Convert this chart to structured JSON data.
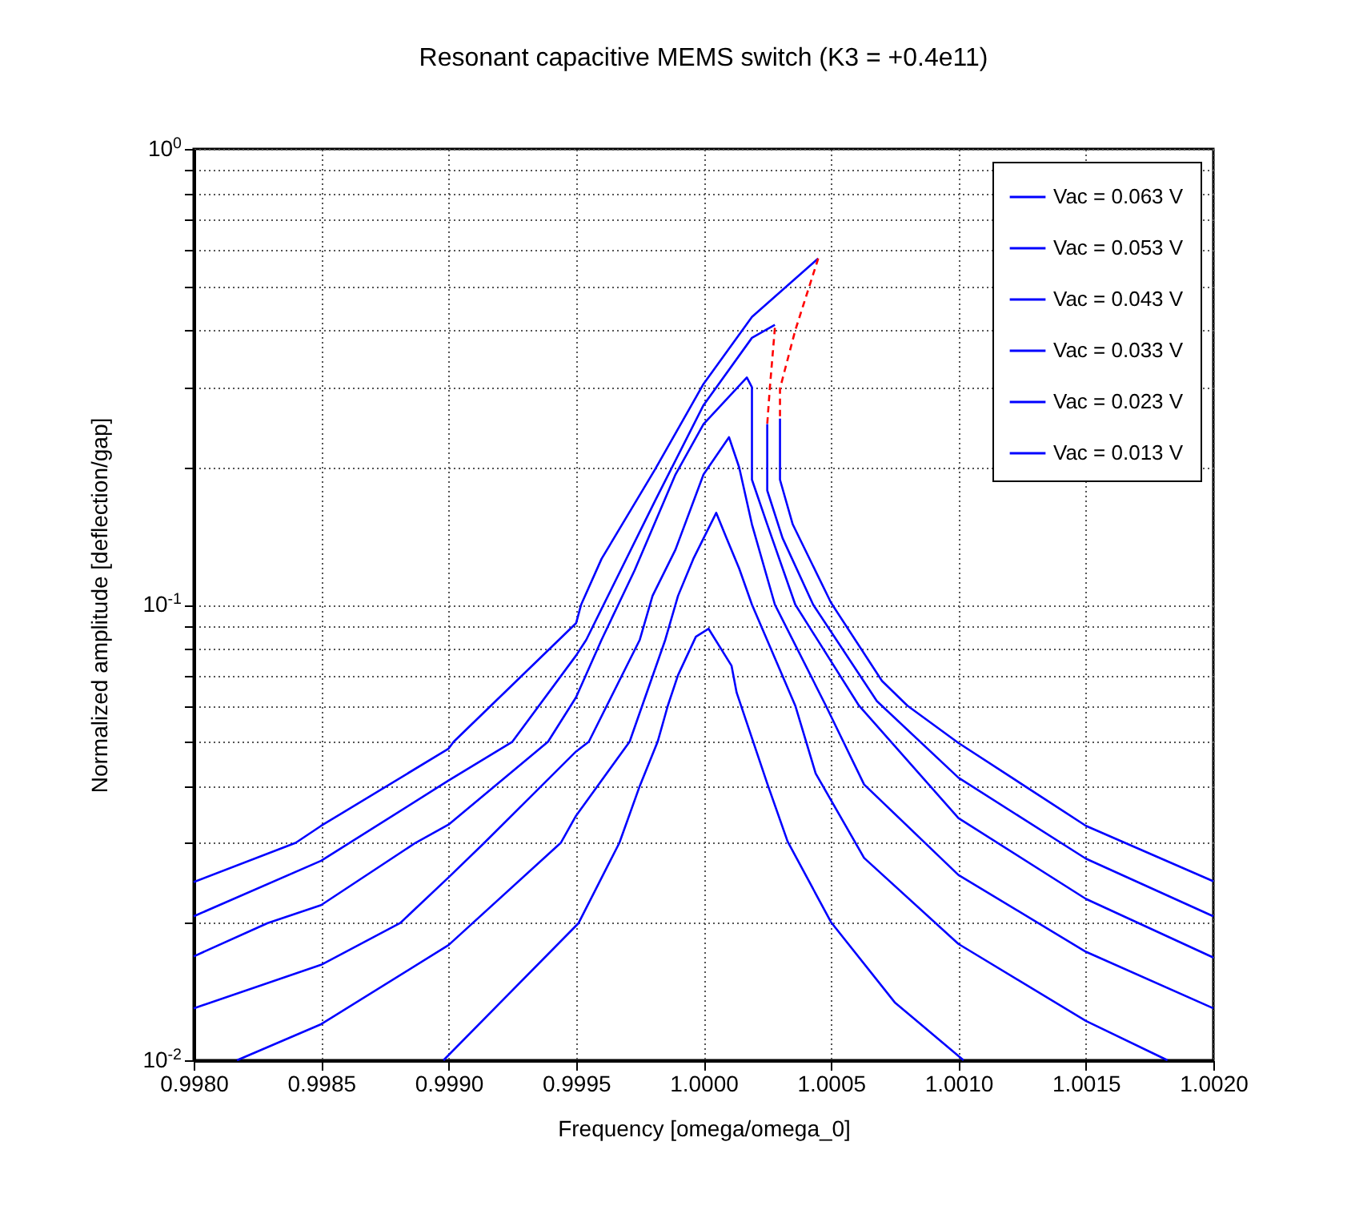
{
  "chart_data": {
    "type": "line",
    "title": "Resonant capacitive MEMS switch (K3 = +0.4e11)",
    "xlabel": "Frequency [omega/omega_0]",
    "ylabel": "Normalized amplitude [deflection/gap]",
    "log": "y",
    "grid": true,
    "legend": "top right",
    "xlim": [
      0.998,
      1.002
    ],
    "ylim": [
      0.01,
      1
    ],
    "xticks": [
      {
        "value": 0.998,
        "label": "0.9980"
      },
      {
        "value": 0.9985,
        "label": "0.9985"
      },
      {
        "value": 0.999,
        "label": "0.9990"
      },
      {
        "value": 0.9995,
        "label": "0.9995"
      },
      {
        "value": 1,
        "label": "1.0000"
      },
      {
        "value": 1.0005,
        "label": "1.0005"
      },
      {
        "value": 1.001,
        "label": "1.0010"
      },
      {
        "value": 1.0015,
        "label": "1.0015"
      },
      {
        "value": 1.002,
        "label": "1.0020"
      }
    ],
    "yticks": [
      {
        "value": 0.01,
        "label": "10$^{-2}$"
      },
      {
        "value": 0.02,
        "label": null
      },
      {
        "value": 0.03,
        "label": null
      },
      {
        "value": 0.04,
        "label": null
      },
      {
        "value": 0.05,
        "label": null
      },
      {
        "value": 0.06,
        "label": null
      },
      {
        "value": 0.07,
        "label": null
      },
      {
        "value": 0.08,
        "label": null
      },
      {
        "value": 0.09,
        "label": null
      },
      {
        "value": 0.1,
        "label": "10$^{-1}$"
      },
      {
        "value": 0.2,
        "label": null
      },
      {
        "value": 0.3,
        "label": null
      },
      {
        "value": 0.4,
        "label": null
      },
      {
        "value": 0.5,
        "label": null
      },
      {
        "value": 0.6,
        "label": null
      },
      {
        "value": 0.7,
        "label": null
      },
      {
        "value": 0.8,
        "label": null
      },
      {
        "value": 0.9,
        "label": null
      },
      {
        "value": 1,
        "label": "10$^{0}$"
      }
    ],
    "series": [
      {
        "name": "Vac = 0.063 V",
        "color": "#0000ff",
        "line_style": "solid",
        "x": [
          0.998,
          0.9984,
          0.9985,
          0.999,
          0.99902,
          0.9995,
          0.99952,
          0.9996,
          0.99981,
          1.0,
          1.00019,
          1.00045,
          null,
          1.0003,
          1.0003,
          1.00035,
          1.0005,
          1.0007,
          1.0008,
          1.001,
          1.0015,
          1.002
        ],
        "values": [
          0.0246,
          0.03,
          0.0327,
          0.0483,
          0.05,
          0.091,
          0.1,
          0.126,
          0.198,
          0.305,
          0.428,
          0.575,
          null,
          0.256,
          0.188,
          0.15,
          0.101,
          0.068,
          0.06,
          0.0497,
          0.0327,
          0.0247
        ]
      },
      {
        "name": "Vac = 0.053 V",
        "color": "#0000ff",
        "line_style": "solid",
        "x": [
          0.998,
          0.9985,
          0.999,
          0.99925,
          0.9995,
          0.99954,
          0.99981,
          1.0,
          1.00019,
          1.00028,
          null,
          1.00025,
          1.00025,
          1.00031,
          1.00043,
          1.00068,
          1.001,
          1.0015,
          1.002
        ],
        "values": [
          0.0207,
          0.0274,
          0.0411,
          0.05,
          0.0773,
          0.0837,
          0.169,
          0.274,
          0.385,
          0.411,
          null,
          0.249,
          0.178,
          0.14,
          0.1,
          0.0614,
          0.0417,
          0.0277,
          0.0207
        ]
      },
      {
        "name": "Vac = 0.043 V",
        "color": "#0000ff",
        "line_style": "solid",
        "x": [
          0.998,
          0.99829,
          0.9985,
          0.99887,
          0.999,
          0.99939,
          0.9995,
          0.9996,
          0.99973,
          0.99989,
          1.0,
          1.00017,
          1.00019,
          1.00019,
          1.00025,
          1.00036,
          1.00061,
          1.001,
          1.0015,
          1.002
        ],
        "values": [
          0.0169,
          0.02,
          0.0219,
          0.03,
          0.0329,
          0.05,
          0.0626,
          0.0837,
          0.119,
          0.193,
          0.249,
          0.315,
          0.3,
          0.188,
          0.15,
          0.1,
          0.06,
          0.034,
          0.0226,
          0.0168
        ]
      },
      {
        "name": "Vac = 0.033 V",
        "color": "#0000ff",
        "line_style": "solid",
        "x": [
          0.998,
          0.9985,
          0.99881,
          0.999,
          0.99914,
          0.9995,
          0.99955,
          0.99975,
          0.9998,
          0.99989,
          1.0,
          1.0001,
          1.00014,
          1.00019,
          1.00028,
          1.00048,
          1.00063,
          1.001,
          1.0015,
          1.002
        ],
        "values": [
          0.013,
          0.0162,
          0.02,
          0.0252,
          0.03,
          0.0476,
          0.05,
          0.0837,
          0.1045,
          0.132,
          0.193,
          0.233,
          0.2,
          0.15,
          0.1,
          0.06,
          0.0403,
          0.0255,
          0.0173,
          0.013
        ]
      },
      {
        "name": "Vac = 0.023 V",
        "color": "#0000ff",
        "line_style": "solid",
        "x": [
          0.99817,
          0.9985,
          0.999,
          0.99944,
          0.9995,
          0.99971,
          0.99985,
          0.9999,
          0.99996,
          1.00005,
          1.00009,
          1.00014,
          1.00019,
          1.00036,
          1.00044,
          1.00063,
          1.001,
          1.0015,
          1.00182
        ],
        "values": [
          0.01,
          0.012,
          0.0179,
          0.03,
          0.0344,
          0.05,
          0.0837,
          0.1045,
          0.126,
          0.159,
          0.14,
          0.12,
          0.1,
          0.06,
          0.0426,
          0.0278,
          0.018,
          0.0122,
          0.01
        ]
      },
      {
        "name": "Vac = 0.013 V",
        "color": "#0000ff",
        "line_style": "solid",
        "x": [
          0.99898,
          0.99951,
          0.99967,
          0.99975,
          0.99982,
          0.99986,
          0.9999,
          0.99997,
          1.00002,
          1.00011,
          1.00013,
          1.00025,
          1.00033,
          1.0005,
          1.00075,
          1.00102
        ],
        "values": [
          0.01,
          0.02,
          0.03,
          0.04,
          0.05,
          0.06,
          0.07,
          0.085,
          0.0885,
          0.0734,
          0.0641,
          0.0405,
          0.0302,
          0.0201,
          0.0134,
          0.01
        ]
      },
      {
        "color": "#ff0000",
        "line_style": "dashed",
        "x": [
          1.00045,
          1.00036,
          1.0003,
          1.0003
        ],
        "values": [
          0.575,
          0.4,
          0.298,
          0.256
        ]
      },
      {
        "color": "#ff0000",
        "line_style": "dashed",
        "x": [
          1.00028,
          1.00026,
          1.00025
        ],
        "values": [
          0.405,
          0.298,
          0.249
        ]
      }
    ]
  }
}
